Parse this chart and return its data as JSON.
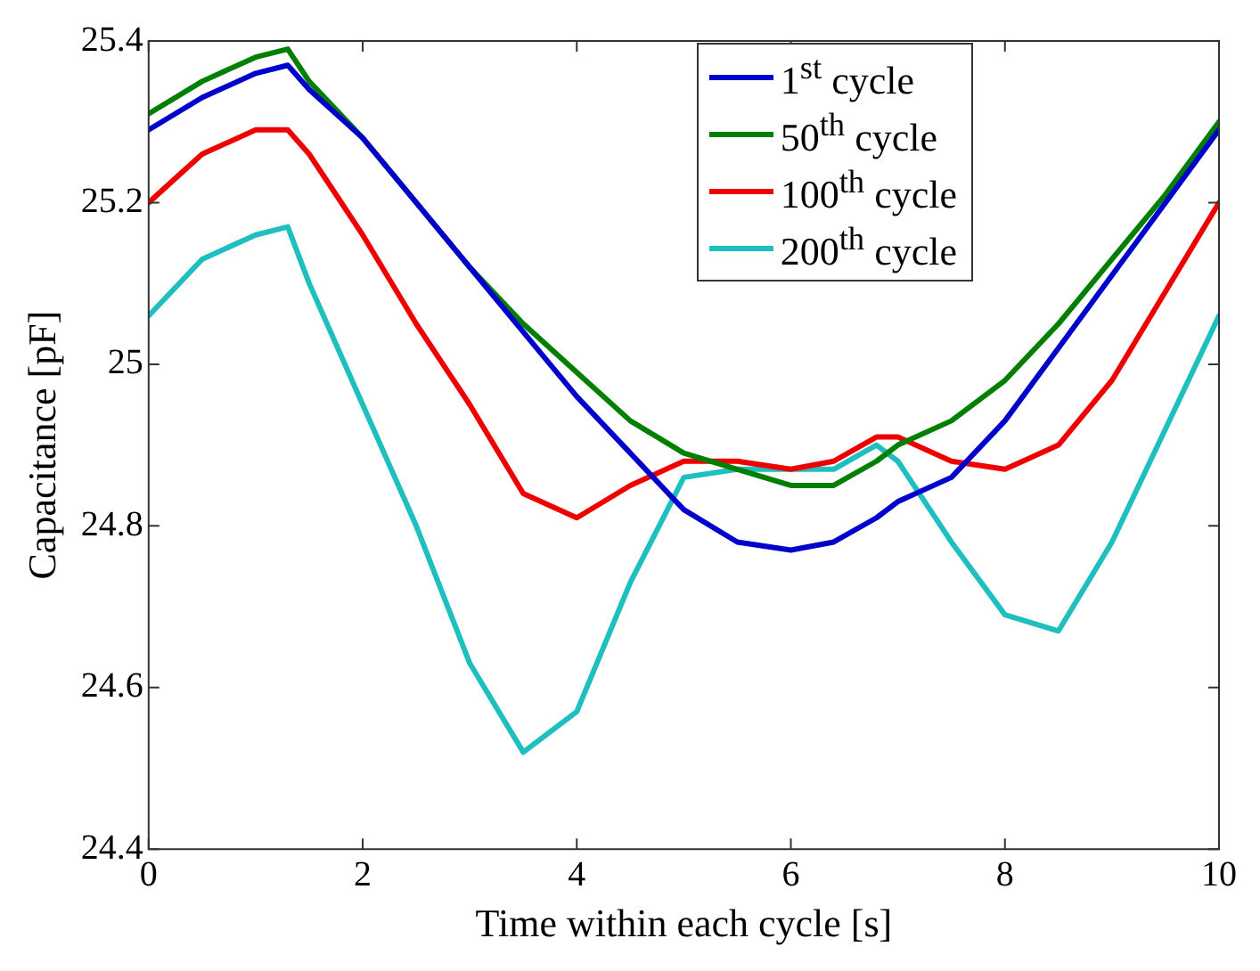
{
  "chart_data": {
    "type": "line",
    "xlabel": "Time within each cycle [s]",
    "ylabel": "Capacitance [pF]",
    "x": [
      0,
      0.5,
      1,
      1.3,
      1.5,
      2,
      2.5,
      3,
      3.5,
      4,
      4.5,
      5,
      5.5,
      6,
      6.4,
      6.8,
      7,
      7.5,
      8,
      8.5,
      9,
      9.5,
      10
    ],
    "series": [
      {
        "name": "1$^{st}$ cycle",
        "color": "#0000cc",
        "values": [
          25.29,
          25.33,
          25.36,
          25.37,
          25.34,
          25.28,
          25.2,
          25.12,
          25.04,
          24.96,
          24.89,
          24.82,
          24.78,
          24.77,
          24.78,
          24.81,
          24.83,
          24.86,
          24.93,
          25.02,
          25.11,
          25.2,
          25.29
        ]
      },
      {
        "name": "50$^{th}$ cycle",
        "color": "#007f00",
        "values": [
          25.31,
          25.35,
          25.38,
          25.39,
          25.35,
          25.28,
          25.2,
          25.12,
          25.05,
          24.99,
          24.93,
          24.89,
          24.87,
          24.85,
          24.85,
          24.88,
          24.9,
          24.93,
          24.98,
          25.05,
          25.13,
          25.21,
          25.3
        ]
      },
      {
        "name": "100$^{th}$ cycle",
        "color": "#ee0000",
        "values": [
          25.2,
          25.26,
          25.29,
          25.29,
          25.26,
          25.16,
          25.05,
          24.95,
          24.84,
          24.81,
          24.85,
          24.88,
          24.88,
          24.87,
          24.88,
          24.91,
          24.91,
          24.88,
          24.87,
          24.9,
          24.98,
          25.09,
          25.2
        ]
      },
      {
        "name": "200$^{th}$ cycle",
        "color": "#1fbfbf",
        "values": [
          25.06,
          25.13,
          25.16,
          25.17,
          25.1,
          24.95,
          24.8,
          24.63,
          24.52,
          24.57,
          24.73,
          24.86,
          24.87,
          24.87,
          24.87,
          24.9,
          24.88,
          24.78,
          24.69,
          24.67,
          24.78,
          24.92,
          25.06
        ]
      }
    ],
    "xlim": [
      0,
      10
    ],
    "xticks": [
      0,
      2,
      4,
      6,
      8,
      10
    ],
    "ylim": [
      24.4,
      25.4
    ],
    "yticks": [
      24.4,
      24.6,
      24.8,
      25,
      25.2,
      25.4
    ],
    "grid": false,
    "legend": "top right",
    "marker": "none",
    "line_style": "solid"
  }
}
